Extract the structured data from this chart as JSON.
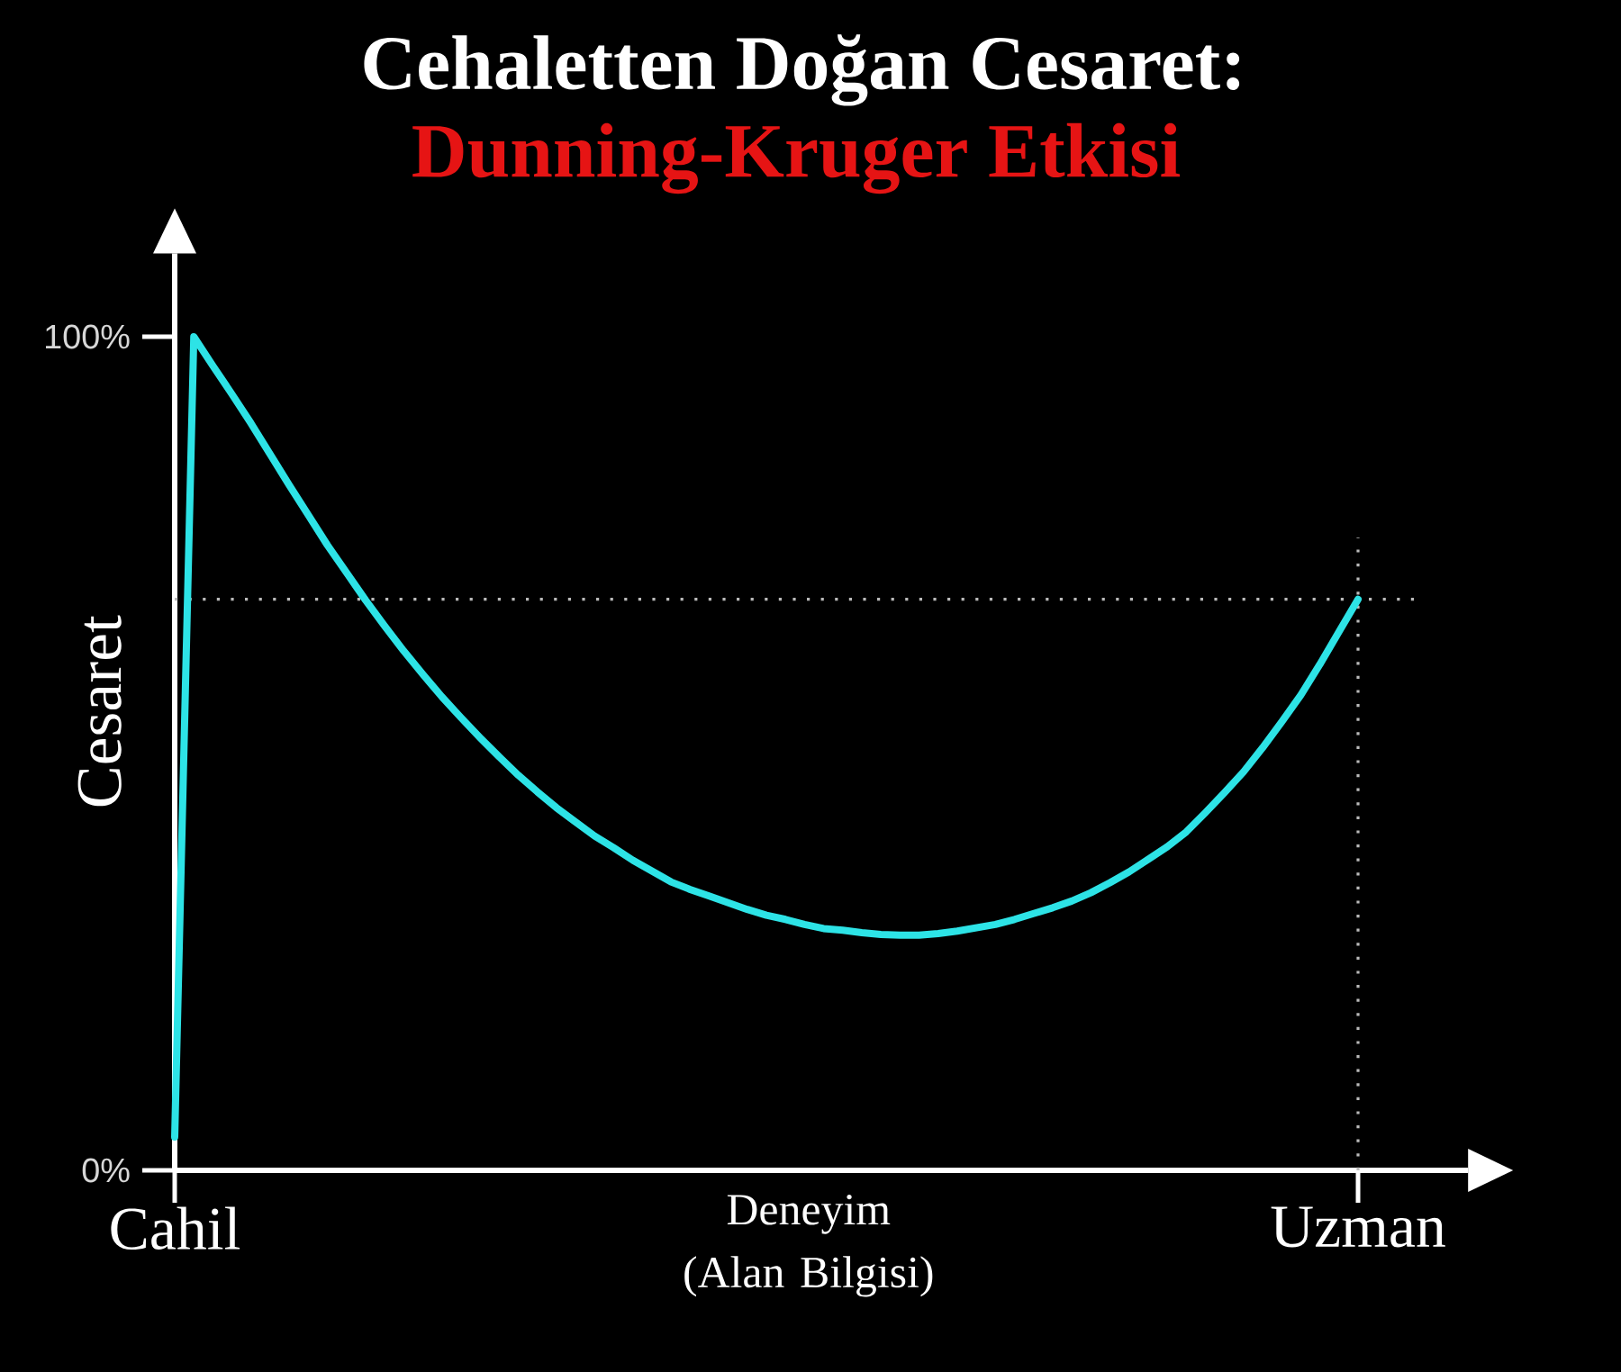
{
  "chart_data": {
    "type": "line",
    "title": "Cehaletten Doğan Cesaret:",
    "subtitle": "Dunning-Kruger Etkisi",
    "xlabel": "Deneyim (Alan Bilgisi)",
    "ylabel": "Cesaret",
    "categories": [
      "Cahil",
      null,
      null,
      null,
      null,
      null,
      null,
      null,
      null,
      null,
      null,
      null,
      null,
      null,
      null,
      null,
      null,
      null,
      null,
      null,
      null,
      null,
      null,
      null,
      null,
      null,
      null,
      null,
      null,
      null,
      null,
      null,
      null,
      null,
      null,
      null,
      null,
      null,
      null,
      null,
      null,
      null,
      null,
      null,
      null,
      null,
      null,
      null,
      null,
      null,
      null,
      null,
      null,
      null,
      null,
      null,
      null,
      null,
      null,
      null,
      null,
      null,
      "Uzman"
    ],
    "values": [
      4,
      100,
      96.5,
      93.1,
      89.6,
      85.9,
      82.2,
      78.6,
      75.0,
      71.7,
      68.4,
      65.3,
      62.3,
      59.5,
      56.8,
      54.3,
      51.9,
      49.6,
      47.4,
      45.4,
      43.5,
      41.8,
      40.1,
      38.7,
      37.2,
      35.9,
      34.6,
      33.7,
      32.9,
      32.1,
      31.3,
      30.6,
      30.1,
      29.5,
      29.0,
      28.8,
      28.5,
      28.3,
      28.2,
      28.2,
      28.4,
      28.7,
      29.1,
      29.5,
      30.1,
      30.8,
      31.5,
      32.3,
      33.3,
      34.5,
      35.8,
      37.3,
      38.8,
      40.6,
      42.9,
      45.3,
      47.8,
      50.7,
      53.8,
      57.0,
      60.7,
      64.6,
      68.5
    ],
    "color": "#2de3e6",
    "ylim": [
      0,
      110
    ],
    "yticks": [
      {
        "value": 0,
        "label": "0%"
      },
      {
        "value": 100,
        "label": "100%"
      }
    ],
    "ref_lines": [
      {
        "axis": "y",
        "value": 68.5,
        "color": "#bbbbbb",
        "line_style": "dotted"
      },
      {
        "axis": "x",
        "value": "Uzman",
        "color": "#bbbbbb",
        "line_style": "dotted"
      }
    ]
  }
}
